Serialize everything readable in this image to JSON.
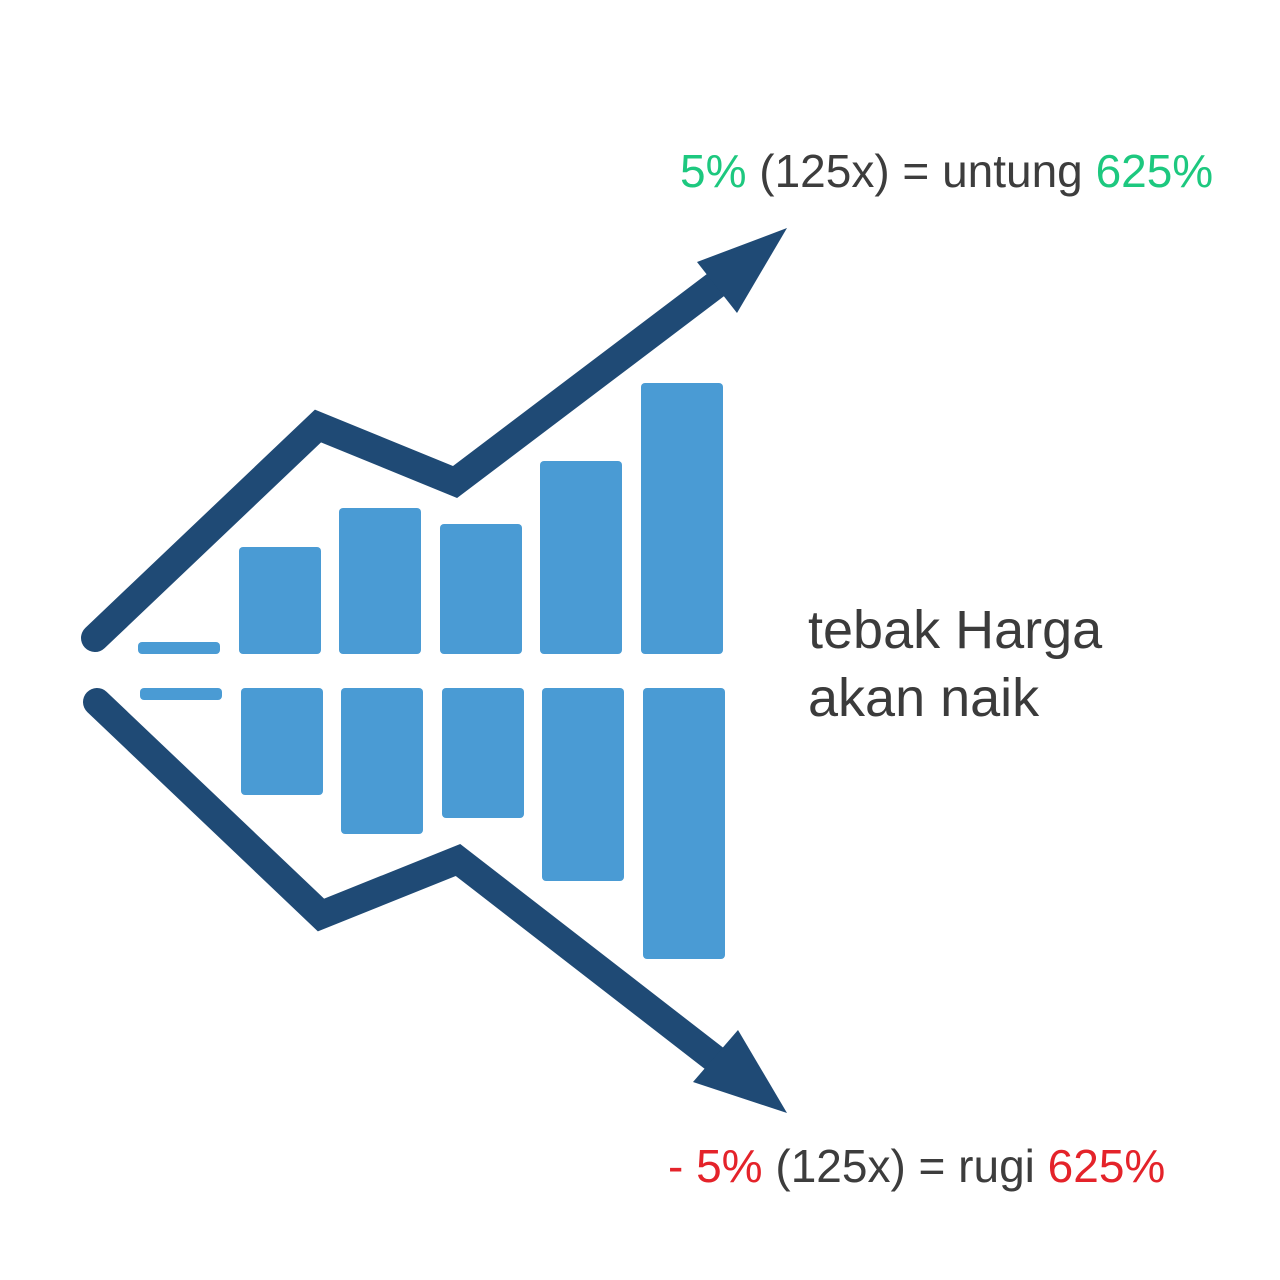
{
  "colors": {
    "arrow": "#1f4a75",
    "bar": "#4a9bd4",
    "gain": "#1dc87f",
    "loss": "#e4232a",
    "text": "#3d3d3d"
  },
  "icons": {
    "up_arrow": "rising-trend-arrow-icon",
    "down_arrow": "falling-trend-arrow-icon"
  },
  "gain_caption": {
    "pct": "5%",
    "mid": " (125x) = untung ",
    "result": "625%"
  },
  "loss_caption": {
    "pct": "- 5%",
    "mid": " (125x) = rugi ",
    "result": "625%"
  },
  "center_caption": {
    "line1": "tebak Harga",
    "line2": "akan naik"
  }
}
